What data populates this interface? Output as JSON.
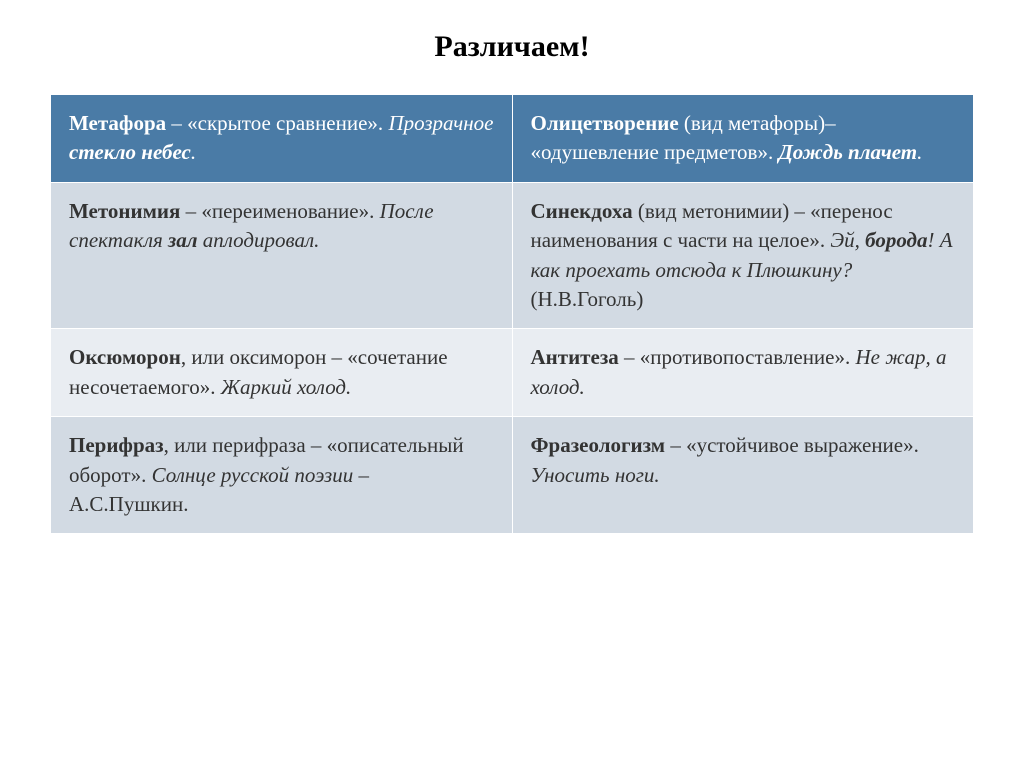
{
  "title": "Различаем!",
  "table": {
    "colors": {
      "header_bg": "#4a7ba6",
      "header_text": "#ffffff",
      "row_alt_bg": "#d2dae3",
      "row_alt2_bg": "#e9edf2",
      "text": "#333333",
      "border": "#ffffff"
    },
    "font_size": 21,
    "rows": [
      [
        {
          "term": "Метафора",
          "def": " – «скрытое сравнение». ",
          "ex_pre": "Прозрачное ",
          "ex_bold": "стекло небес",
          "ex_post": "."
        },
        {
          "term": "Олицетворение",
          "def": " (вид метафоры)– «одушевление предметов». ",
          "ex_bold": "Дождь плачет",
          "ex_post": "."
        }
      ],
      [
        {
          "term": "Метонимия",
          "def": " – «переименование». ",
          "ex_pre": "После спектакля ",
          "ex_bold": "зал",
          "ex_post": " аплодировал."
        },
        {
          "term": "Синекдоха",
          "def": " (вид метонимии) – «перенос наименования с части на целое». ",
          "ex_pre": "Эй, ",
          "ex_bold": "борода",
          "ex_post": "! А как проехать отсюда к Плюшкину?",
          "cite": " (Н.В.Гоголь)"
        }
      ],
      [
        {
          "term": "Оксюморон",
          "def_pre": ", или окс",
          "def_accent": "и",
          "def_post": "морон – «сочетание несочетаемого». ",
          "ex_pre": "Жаркий холод."
        },
        {
          "term": "Антитеза",
          "def": " – «противопоставление». ",
          "ex_pre": "Не жар, а холод."
        }
      ],
      [
        {
          "term": "Перифраз",
          "def_pre": ", или перифр",
          "def_accent": "а",
          "def_post": "за – «описательный оборот». ",
          "ex_pre": "Солнце русской поэзии",
          "ex_tail": " – А.С.Пушкин."
        },
        {
          "term": "Фразеологизм",
          "def": " – «устойчивое выражение». ",
          "ex_pre": "Уносить ноги."
        }
      ]
    ]
  }
}
